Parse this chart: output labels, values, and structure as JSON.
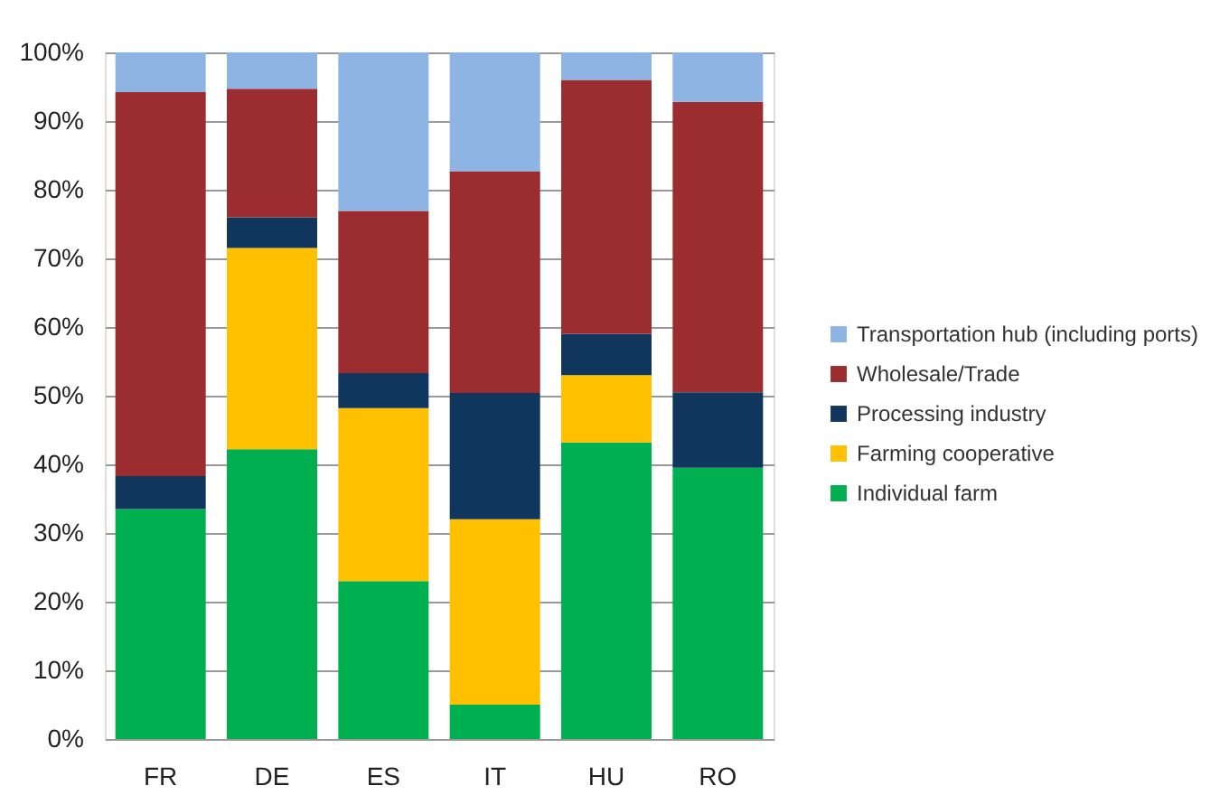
{
  "chart_data": {
    "type": "bar",
    "stacked": true,
    "categories": [
      "FR",
      "DE",
      "ES",
      "IT",
      "HU",
      "RO"
    ],
    "series": [
      {
        "name": "Individual farm",
        "color": "#00b050",
        "values": [
          33.5,
          42.2,
          23,
          5,
          43.2,
          39.5
        ]
      },
      {
        "name": "Farming cooperative",
        "color": "#ffc000",
        "values": [
          0,
          29.3,
          25.2,
          27,
          9.8,
          0
        ]
      },
      {
        "name": "Processing industry",
        "color": "#10365e",
        "values": [
          4.8,
          4.5,
          5.1,
          18.4,
          6,
          11
        ]
      },
      {
        "name": "Wholesale/Trade",
        "color": "#9b2d30",
        "values": [
          55.9,
          18.7,
          23.6,
          32.3,
          37,
          42.3
        ]
      },
      {
        "name": "Transportation hub (including ports)",
        "color": "#8db4e2",
        "values": [
          5.8,
          5.3,
          23.1,
          17.3,
          4,
          7.2
        ]
      }
    ],
    "ylim": [
      0,
      100
    ],
    "yticks": [
      {
        "value": 0,
        "label": "0%"
      },
      {
        "value": 10,
        "label": "10%"
      },
      {
        "value": 20,
        "label": "20%"
      },
      {
        "value": 30,
        "label": "30%"
      },
      {
        "value": 40,
        "label": "40%"
      },
      {
        "value": 50,
        "label": "50%"
      },
      {
        "value": 60,
        "label": "60%"
      },
      {
        "value": 70,
        "label": "70%"
      },
      {
        "value": 80,
        "label": "80%"
      },
      {
        "value": 90,
        "label": "90%"
      },
      {
        "value": 100,
        "label": "100%"
      }
    ],
    "grid": "y",
    "legend": "right"
  }
}
